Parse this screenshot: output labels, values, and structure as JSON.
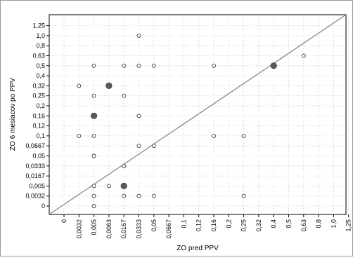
{
  "chart_data": {
    "type": "scatter",
    "xlabel": "ZO pred PPV",
    "ylabel": "ZO 6 mesiacov po PPV",
    "x_ticks": [
      "0",
      "0,0032",
      "0,005",
      "0,0063",
      "0,0167",
      "0,0333",
      "0,05",
      "0,0667",
      "0,1",
      "0,12",
      "0,16",
      "0,2",
      "0,25",
      "0,32",
      "0,4",
      "0,5",
      "0,63",
      "0,8",
      "1,0",
      "1,25"
    ],
    "y_ticks": [
      "0",
      "0,0032",
      "0,005",
      "0,0167",
      "0,0333",
      "0,05",
      "0,0667",
      "0,1",
      "0,12",
      "0,16",
      "0,2",
      "0,25",
      "0,32",
      "0,4",
      "0,5",
      "0,63",
      "0,8",
      "1,0",
      "1,25"
    ],
    "grid": true,
    "diagonal": "identity",
    "points": [
      {
        "x": "0,0333",
        "y": "1,0",
        "size": "small"
      },
      {
        "x": "0,005",
        "y": "0,5",
        "size": "small"
      },
      {
        "x": "0,0167",
        "y": "0,5",
        "size": "small"
      },
      {
        "x": "0,0333",
        "y": "0,5",
        "size": "small"
      },
      {
        "x": "0,05",
        "y": "0,5",
        "size": "small"
      },
      {
        "x": "0,16",
        "y": "0,5",
        "size": "small"
      },
      {
        "x": "0,4",
        "y": "0,5",
        "size": "large"
      },
      {
        "x": "0,63",
        "y": "0,63",
        "size": "small"
      },
      {
        "x": "0,0032",
        "y": "0,32",
        "size": "small"
      },
      {
        "x": "0,0063",
        "y": "0,32",
        "size": "large"
      },
      {
        "x": "0,005",
        "y": "0,25",
        "size": "small"
      },
      {
        "x": "0,0167",
        "y": "0,25",
        "size": "small"
      },
      {
        "x": "0,005",
        "y": "0,16",
        "size": "large"
      },
      {
        "x": "0,0333",
        "y": "0,16",
        "size": "small"
      },
      {
        "x": "0,0032",
        "y": "0,1",
        "size": "small"
      },
      {
        "x": "0,005",
        "y": "0,1",
        "size": "small"
      },
      {
        "x": "0,16",
        "y": "0,1",
        "size": "small"
      },
      {
        "x": "0,25",
        "y": "0,1",
        "size": "small"
      },
      {
        "x": "0,0333",
        "y": "0,0667",
        "size": "small"
      },
      {
        "x": "0,05",
        "y": "0,0667",
        "size": "small"
      },
      {
        "x": "0,005",
        "y": "0,05",
        "size": "small"
      },
      {
        "x": "0,0167",
        "y": "0,0333",
        "size": "small"
      },
      {
        "x": "0,005",
        "y": "0,005",
        "size": "small"
      },
      {
        "x": "0,0063",
        "y": "0,005",
        "size": "small"
      },
      {
        "x": "0,0167",
        "y": "0,005",
        "size": "large"
      },
      {
        "x": "0,005",
        "y": "0,0032",
        "size": "small"
      },
      {
        "x": "0,0167",
        "y": "0,0032",
        "size": "small"
      },
      {
        "x": "0,0333",
        "y": "0,0032",
        "size": "small"
      },
      {
        "x": "0,05",
        "y": "0,0032",
        "size": "small"
      },
      {
        "x": "0,25",
        "y": "0,0032",
        "size": "small"
      },
      {
        "x": "0,005",
        "y": "0",
        "size": "small"
      }
    ]
  }
}
